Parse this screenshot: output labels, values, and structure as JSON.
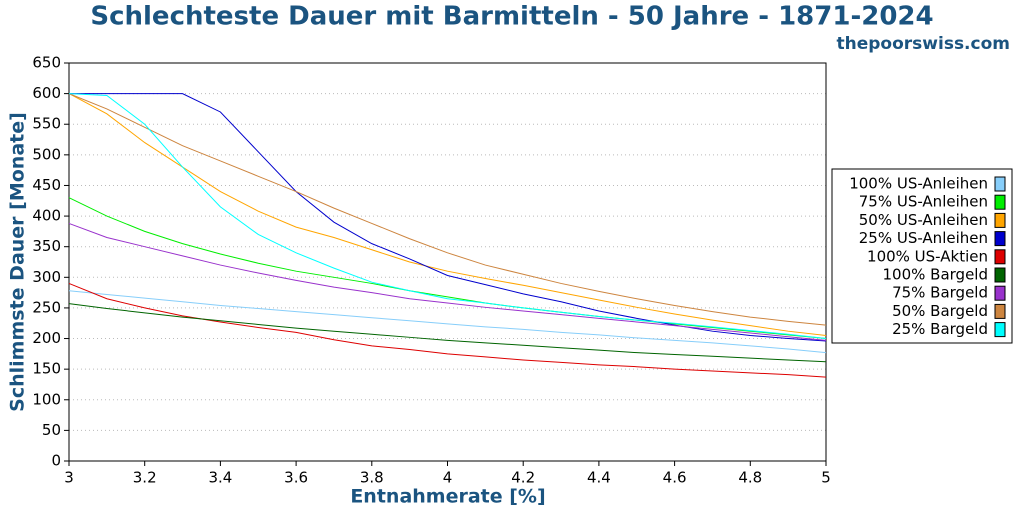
{
  "chart_data": {
    "type": "line",
    "title": "Schlechteste Dauer mit Barmitteln - 50 Jahre - 1871-2024",
    "subtitle": "thepoorswiss.com",
    "x_label": "Entnahmerate [%]",
    "y_label": "Schlimmste Dauer [Monate]",
    "x": [
      3,
      3.1,
      3.2,
      3.3,
      3.4,
      3.5,
      3.6,
      3.7,
      3.8,
      3.9,
      4,
      4.1,
      4.2,
      4.3,
      4.4,
      4.5,
      4.6,
      4.7,
      4.8,
      4.9,
      5
    ],
    "xlim": [
      3,
      5
    ],
    "xticks": [
      3,
      3.2,
      3.4,
      3.6,
      3.8,
      4,
      4.2,
      4.4,
      4.6,
      4.8,
      5
    ],
    "ylim": [
      0,
      650
    ],
    "yticks": [
      0,
      50,
      100,
      150,
      200,
      250,
      300,
      350,
      400,
      450,
      500,
      550,
      600,
      650
    ],
    "grid": true,
    "legend": "right",
    "series": [
      {
        "name": "100% US-Anleihen",
        "color": "#87cefa",
        "values": [
          278,
          272,
          266,
          260,
          254,
          249,
          244,
          239,
          234,
          229,
          224,
          219,
          215,
          210,
          206,
          201,
          197,
          193,
          188,
          183,
          177
        ]
      },
      {
        "name": "75% US-Anleihen",
        "color": "#00ee00",
        "values": [
          430,
          400,
          375,
          355,
          338,
          323,
          310,
          300,
          290,
          278,
          268,
          258,
          250,
          243,
          236,
          230,
          224,
          218,
          212,
          206,
          200
        ]
      },
      {
        "name": "50% US-Anleihen",
        "color": "#ffa500",
        "values": [
          600,
          567,
          520,
          480,
          440,
          408,
          382,
          365,
          345,
          325,
          310,
          298,
          287,
          275,
          263,
          251,
          240,
          230,
          221,
          212,
          205
        ]
      },
      {
        "name": "25% US-Anleihen",
        "color": "#0000cd",
        "values": [
          600,
          600,
          600,
          600,
          570,
          505,
          440,
          390,
          355,
          330,
          303,
          288,
          273,
          260,
          245,
          233,
          222,
          212,
          205,
          200,
          196
        ]
      },
      {
        "name": "100% US-Aktien",
        "color": "#dd0000",
        "values": [
          290,
          265,
          250,
          237,
          227,
          218,
          210,
          198,
          188,
          182,
          175,
          170,
          165,
          161,
          157,
          154,
          150,
          147,
          144,
          141,
          137
        ]
      },
      {
        "name": "100% Bargeld",
        "color": "#006400",
        "values": [
          257,
          249,
          242,
          235,
          229,
          223,
          217,
          212,
          207,
          202,
          197,
          193,
          189,
          185,
          181,
          177,
          174,
          171,
          168,
          165,
          162
        ]
      },
      {
        "name": "75% Bargeld",
        "color": "#9932cc",
        "values": [
          388,
          365,
          350,
          335,
          320,
          307,
          295,
          284,
          275,
          265,
          258,
          251,
          245,
          239,
          233,
          227,
          221,
          215,
          209,
          203,
          197
        ]
      },
      {
        "name": "50% Bargeld",
        "color": "#cd853f",
        "values": [
          600,
          575,
          545,
          515,
          490,
          465,
          440,
          413,
          388,
          363,
          340,
          320,
          305,
          290,
          277,
          265,
          254,
          244,
          235,
          228,
          222
        ]
      },
      {
        "name": "25% Bargeld",
        "color": "#00ffff",
        "values": [
          600,
          597,
          550,
          480,
          415,
          370,
          340,
          315,
          292,
          278,
          265,
          258,
          250,
          243,
          236,
          230,
          225,
          219,
          213,
          207,
          200
        ]
      }
    ]
  }
}
